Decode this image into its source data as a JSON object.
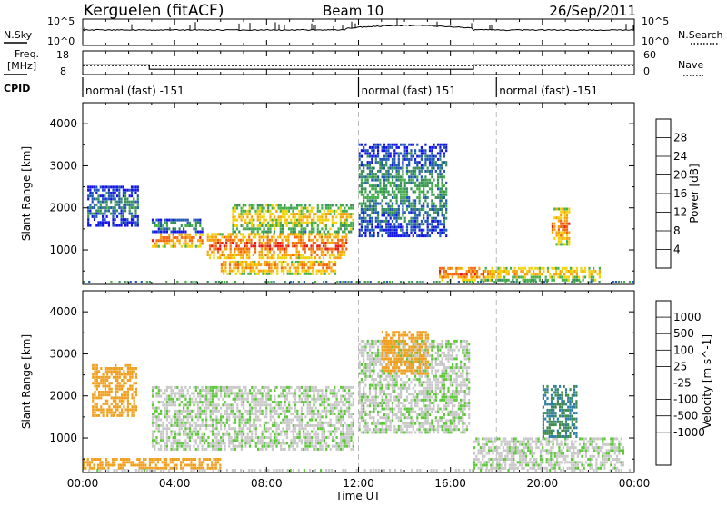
{
  "header": {
    "station": "Kerguelen (fitACF)",
    "beam": "Beam 10",
    "date": "26/Sep/2011"
  },
  "top_panels": {
    "nsky_label": "N.Sky",
    "nsky_ticks": [
      "10^5",
      "10^0"
    ],
    "nsearch_label": "N.Search",
    "nsearch_ticks": [
      "10^5",
      "10^0"
    ],
    "freq_label_1": "Freq.",
    "freq_label_2": "[MHz]",
    "freq_ticks": [
      "18",
      "8"
    ],
    "nave_label": "Nave",
    "nave_ticks": [
      "60",
      "0"
    ],
    "cpid_label": "CPID"
  },
  "cpid_segments": [
    {
      "label": "normal (fast) -151",
      "start_h": 0,
      "end_h": 12
    },
    {
      "label": "normal (fast) 151",
      "start_h": 12,
      "end_h": 18
    },
    {
      "label": "normal (fast) -151",
      "start_h": 18,
      "end_h": 24
    }
  ],
  "frequency_trace": {
    "freq_mhz_steps": [
      {
        "start_h": 0,
        "end_h": 2.9,
        "value": 12.0
      },
      {
        "start_h": 2.9,
        "end_h": 17.0,
        "value": 10.0
      },
      {
        "start_h": 17.0,
        "end_h": 24,
        "value": 12.0
      }
    ],
    "nave_level": 22
  },
  "time_axis": {
    "ticks": [
      "00:00",
      "04:00",
      "08:00",
      "12:00",
      "16:00",
      "20:00",
      "00:00"
    ],
    "tick_hours": [
      0,
      4,
      8,
      12,
      16,
      20,
      24
    ],
    "label": "Time UT"
  },
  "range_axis": {
    "label": "Slant Range [km]",
    "ticks": [
      "1000",
      "2000",
      "3000",
      "4000"
    ],
    "tick_values": [
      1000,
      2000,
      3000,
      4000
    ],
    "range_min": 180,
    "range_max": 4500
  },
  "power_colorbar": {
    "title": "Power [dB]",
    "ticks": [
      "4",
      "8",
      "12",
      "16",
      "20",
      "24",
      "28"
    ],
    "colors": [
      "#1414e6",
      "#2158b8",
      "#3a8f5a",
      "#45b04a",
      "#f2d20c",
      "#f7a20a",
      "#f06a12",
      "#e81a12"
    ]
  },
  "velocity_colorbar": {
    "title": "Velocity [m s^-1]",
    "ticks": [
      "1000",
      "500",
      "100",
      "25",
      "-25",
      "-100",
      "-500",
      "-1000"
    ],
    "colors": [
      "#1a3fbf",
      "#2d7fa6",
      "#3f8a4c",
      "#5ec73a",
      "#c8c8c8",
      "#c8c8c8",
      "#f0a020",
      "#f07818",
      "#e84010",
      "#e00a0a"
    ]
  },
  "chart_data": [
    {
      "type": "heatmap",
      "title": "Power [dB]",
      "xlabel": "Time UT",
      "ylabel": "Slant Range [km]",
      "x_range": [
        0,
        24
      ],
      "ylim": [
        180,
        4500
      ],
      "regions": [
        {
          "t0": 0.2,
          "t1": 2.4,
          "r0": 1550,
          "r1": 2500,
          "level_db": 10
        },
        {
          "t0": 3.0,
          "t1": 5.2,
          "r0": 1050,
          "r1": 1400,
          "level_db": 27
        },
        {
          "t0": 3.0,
          "t1": 5.2,
          "r0": 1400,
          "r1": 1700,
          "level_db": 12
        },
        {
          "t0": 5.4,
          "t1": 11.5,
          "r0": 780,
          "r1": 1350,
          "level_db": 28
        },
        {
          "t0": 6.0,
          "t1": 11.0,
          "r0": 400,
          "r1": 720,
          "level_db": 25
        },
        {
          "t0": 6.5,
          "t1": 11.8,
          "r0": 1400,
          "r1": 2100,
          "level_db": 20
        },
        {
          "t0": 12.0,
          "t1": 15.8,
          "r0": 1300,
          "r1": 3500,
          "level_db": 12
        },
        {
          "t0": 15.5,
          "t1": 17.5,
          "r0": 250,
          "r1": 600,
          "level_db": 28
        },
        {
          "t0": 17.5,
          "t1": 22.5,
          "r0": 250,
          "r1": 600,
          "level_db": 22
        },
        {
          "t0": 20.4,
          "t1": 21.2,
          "r0": 1100,
          "r1": 2000,
          "level_db": 26
        }
      ]
    },
    {
      "type": "heatmap",
      "title": "Velocity [m s^-1]",
      "xlabel": "Time UT",
      "ylabel": "Slant Range [km]",
      "x_range": [
        0,
        24
      ],
      "ylim": [
        180,
        4500
      ],
      "regions": [
        {
          "t0": 0.4,
          "t1": 2.3,
          "r0": 1500,
          "r1": 2700,
          "velocity": -200
        },
        {
          "t0": 3.0,
          "t1": 11.8,
          "r0": 700,
          "r1": 2200,
          "velocity": 0
        },
        {
          "t0": 12.0,
          "t1": 16.8,
          "r0": 1100,
          "r1": 3300,
          "velocity": 0
        },
        {
          "t0": 13.0,
          "t1": 15.0,
          "r0": 2500,
          "r1": 3500,
          "velocity": -200
        },
        {
          "t0": 17.0,
          "t1": 23.5,
          "r0": 250,
          "r1": 1000,
          "velocity": 0
        },
        {
          "t0": 20.0,
          "t1": 21.5,
          "r0": 1000,
          "r1": 2200,
          "velocity": 500
        },
        {
          "t0": 0.0,
          "t1": 6.0,
          "r0": 250,
          "r1": 500,
          "velocity": -300
        }
      ]
    }
  ]
}
